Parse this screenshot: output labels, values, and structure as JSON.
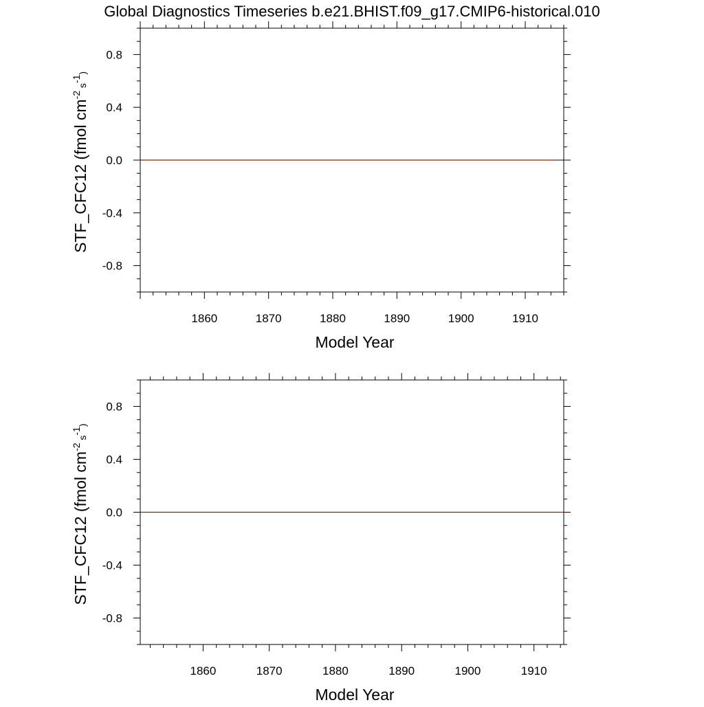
{
  "title": "Global Diagnostics Timeseries b.e21.BHIST.f09_g17.CMIP6-historical.010",
  "colors": {
    "series": "#8B2500",
    "axis": "#000000",
    "background": "#ffffff"
  },
  "chart_data": [
    {
      "type": "line",
      "xlabel": "Model Year",
      "ylabel": {
        "prefix": "STF_CFC12 (fmol cm",
        "exp1": "-2",
        "mid": " s",
        "exp2": "-1",
        "suffix": ")"
      },
      "xlim": [
        1850,
        1916
      ],
      "ylim": [
        -1.0,
        1.0
      ],
      "xticks": [
        1860,
        1870,
        1880,
        1890,
        1900,
        1910
      ],
      "xtick_labels": [
        "1860",
        "1870",
        "1880",
        "1890",
        "1900",
        "1910"
      ],
      "yticks": [
        0.8,
        0.4,
        0.0,
        -0.4,
        -0.8
      ],
      "ytick_labels": [
        "0.8",
        "0.4",
        "0.0",
        "-0.4",
        "-0.8"
      ],
      "grid": false,
      "series": [
        {
          "x": [
            1850,
            1865,
            1880,
            1895,
            1910,
            1914.5
          ],
          "y": [
            0,
            0,
            0,
            0,
            0,
            0
          ]
        }
      ]
    },
    {
      "type": "line",
      "xlabel": "Model Year",
      "ylabel": {
        "prefix": "STF_CFC12 (fmol cm",
        "exp1": "-2",
        "mid": " s",
        "exp2": "-1",
        "suffix": ")"
      },
      "xlim": [
        1850.5,
        1914.5
      ],
      "ylim": [
        -1.0,
        1.0
      ],
      "xticks": [
        1860,
        1870,
        1880,
        1890,
        1900,
        1910
      ],
      "xtick_labels": [
        "1860",
        "1870",
        "1880",
        "1890",
        "1900",
        "1910"
      ],
      "yticks": [
        0.8,
        0.4,
        0.0,
        -0.4,
        -0.8
      ],
      "ytick_labels": [
        "0.8",
        "0.4",
        "0.0",
        "-0.4",
        "-0.8"
      ],
      "grid": false,
      "series": [
        {
          "x": [
            1850.5,
            1865,
            1880,
            1895,
            1910,
            1914.5
          ],
          "y": [
            0,
            0,
            0,
            0,
            0,
            0
          ]
        }
      ]
    }
  ]
}
